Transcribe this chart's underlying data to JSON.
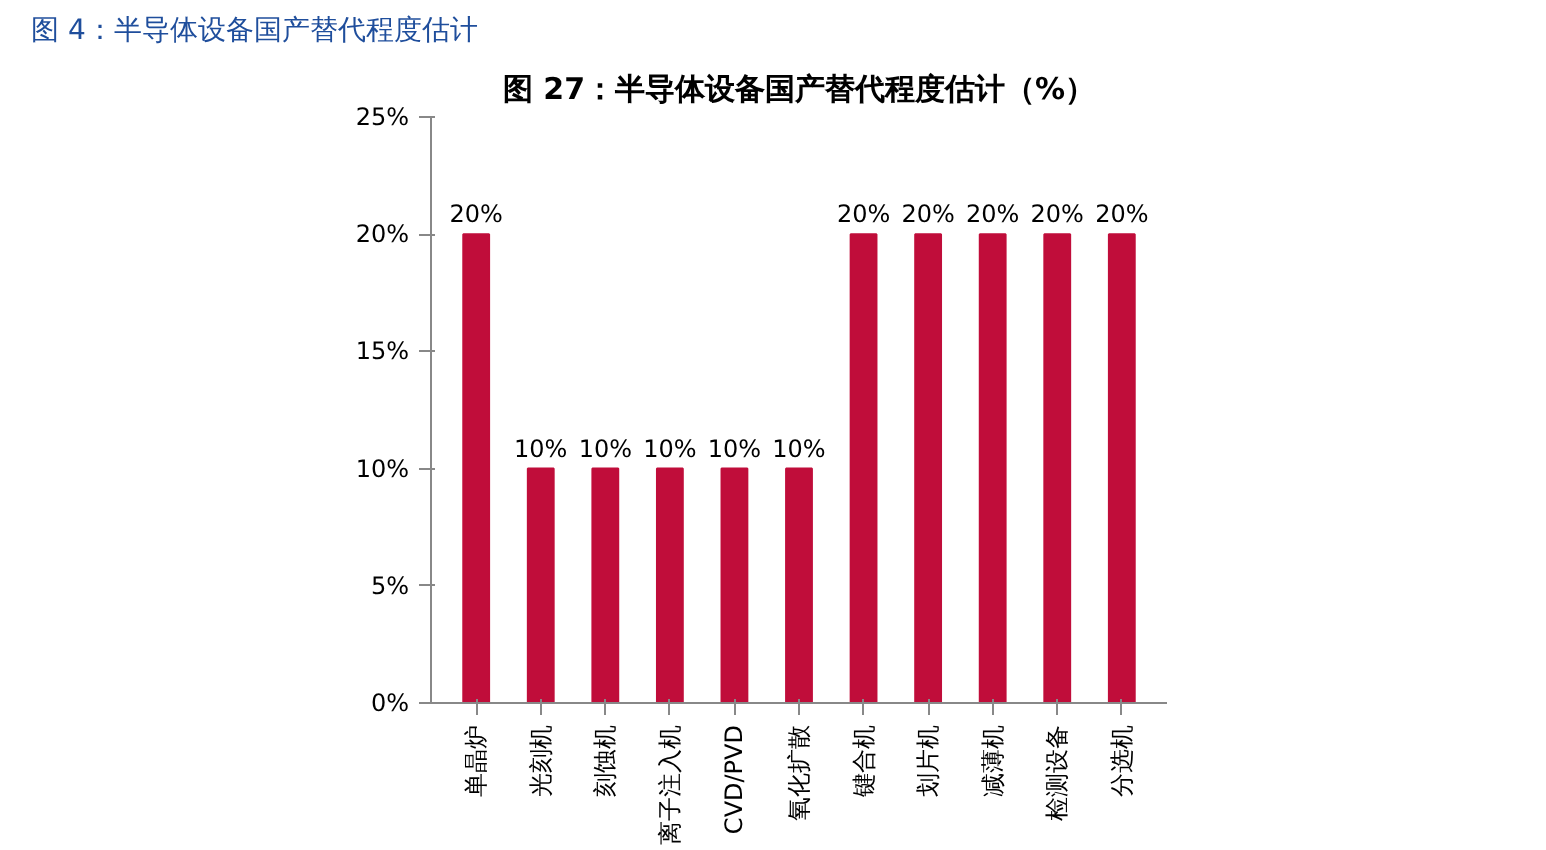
{
  "chart_data": {
    "type": "bar",
    "title": "图 4：半导体设备国产替代程度估计",
    "subtitle": "图 27：半导体设备国产替代程度估计（%）",
    "categories": [
      "单晶炉",
      "光刻机",
      "刻蚀机",
      "离子注入机",
      "CVD/PVD",
      "氧化扩散",
      "键合机",
      "划片机",
      "减薄机",
      "检测设备",
      "分选机"
    ],
    "values": [
      20,
      10,
      10,
      10,
      10,
      10,
      20,
      20,
      20,
      20,
      20
    ],
    "value_labels": [
      "20%",
      "10%",
      "10%",
      "10%",
      "10%",
      "10%",
      "20%",
      "20%",
      "20%",
      "20%",
      "20%"
    ],
    "color": "#c00d3a",
    "ylim": [
      0,
      25
    ],
    "yticks": [
      {
        "value": 0,
        "label": "0%"
      },
      {
        "value": 5,
        "label": "5%"
      },
      {
        "value": 10,
        "label": "10%"
      },
      {
        "value": 15,
        "label": "15%"
      },
      {
        "value": 20,
        "label": "20%"
      },
      {
        "value": 25,
        "label": "25%"
      }
    ],
    "grid": false
  }
}
